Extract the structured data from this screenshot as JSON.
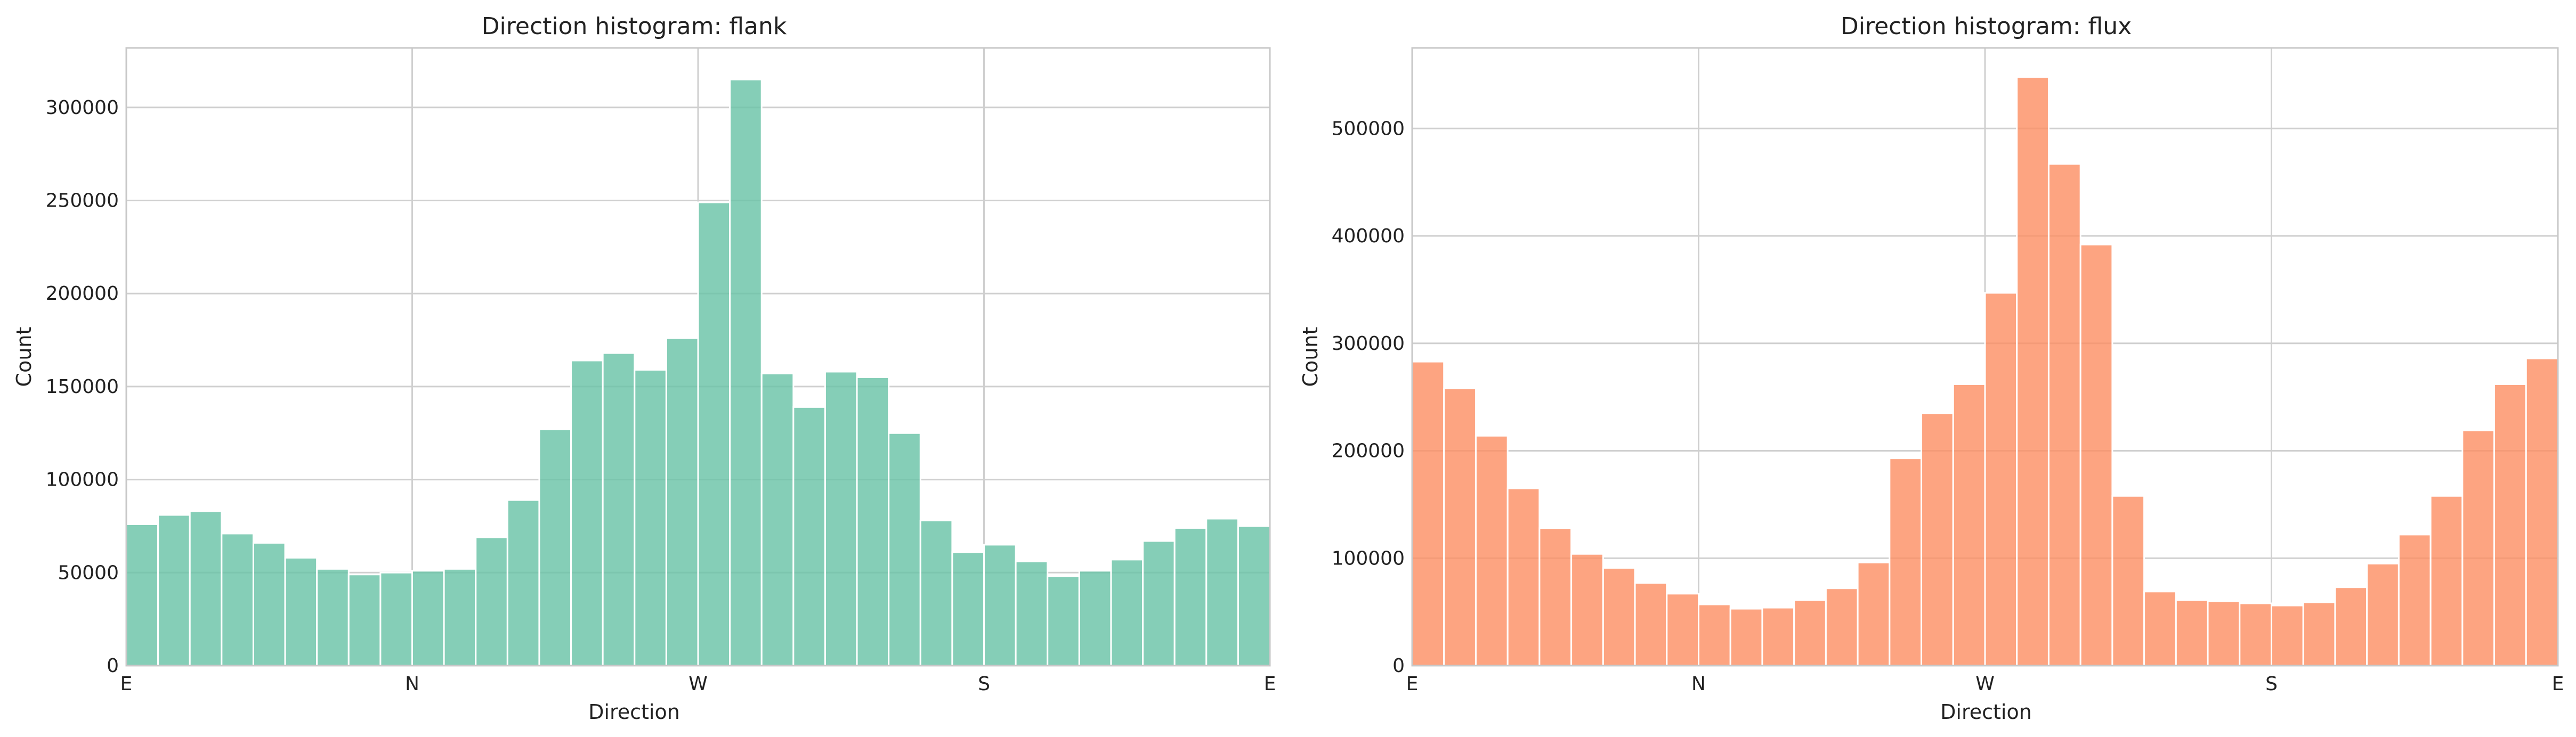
{
  "chart_data": [
    {
      "type": "bar",
      "title": "Direction histogram: flank",
      "xlabel": "Direction",
      "ylabel": "Count",
      "ylim": [
        0,
        332000
      ],
      "yticks": [
        0,
        50000,
        100000,
        150000,
        200000,
        250000,
        300000
      ],
      "xticks": [
        "E",
        "N",
        "W",
        "S",
        "E"
      ],
      "grid": true,
      "color": "#66c2a5",
      "bins": 36,
      "values": [
        76000,
        81000,
        83000,
        71000,
        66000,
        58000,
        52000,
        49000,
        50000,
        51000,
        52000,
        69000,
        89000,
        127000,
        164000,
        168000,
        159000,
        176000,
        249000,
        315000,
        157000,
        139000,
        158000,
        155000,
        125000,
        78000,
        61000,
        65000,
        56000,
        48000,
        51000,
        57000,
        67000,
        74000,
        79000,
        75000
      ]
    },
    {
      "type": "bar",
      "title": "Direction histogram: flux",
      "xlabel": "Direction",
      "ylabel": "Count",
      "ylim": [
        0,
        575000
      ],
      "yticks": [
        0,
        100000,
        200000,
        300000,
        400000,
        500000
      ],
      "xticks": [
        "E",
        "N",
        "W",
        "S",
        "E"
      ],
      "grid": true,
      "color": "#fc8d62",
      "bins": 36,
      "values": [
        283000,
        258000,
        214000,
        165000,
        128000,
        104000,
        91000,
        77000,
        67000,
        57000,
        53000,
        54000,
        61000,
        72000,
        96000,
        193000,
        235000,
        262000,
        347000,
        548000,
        467000,
        392000,
        158000,
        69000,
        61000,
        60000,
        58000,
        56000,
        59000,
        73000,
        95000,
        122000,
        158000,
        219000,
        262000,
        286000
      ]
    }
  ]
}
